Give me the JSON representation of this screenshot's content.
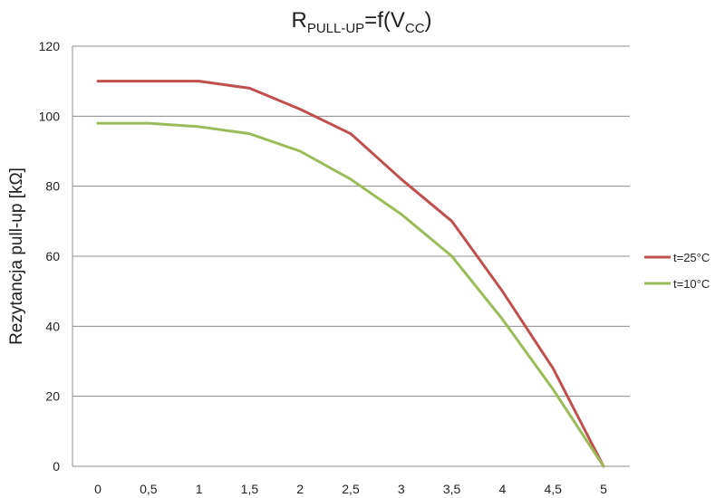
{
  "chart_data": {
    "type": "line",
    "title": {
      "main": "R",
      "main_sub": "PULL-UP",
      "mid": "=f(V",
      "mid_sub": "CC",
      "end": ")"
    },
    "xlabel": "",
    "ylabel": "Rezytancja pull-up [kΩ]",
    "categories": [
      "0",
      "0,5",
      "1",
      "1,5",
      "2",
      "2,5",
      "3",
      "3,5",
      "4",
      "4,5",
      "5"
    ],
    "ylim": [
      0,
      120
    ],
    "yticks": [
      "0",
      "20",
      "40",
      "60",
      "80",
      "100",
      "120"
    ],
    "grid": true,
    "legend_position": "right",
    "series": [
      {
        "name": "t=25°C",
        "color": "#c0504d",
        "values": [
          110,
          110,
          110,
          108,
          102,
          95,
          82,
          70,
          50,
          28,
          0
        ]
      },
      {
        "name": "t=10°C",
        "color": "#9bbb59",
        "values": [
          98,
          98,
          97,
          95,
          90,
          82,
          72,
          60,
          42,
          22,
          0
        ]
      }
    ]
  }
}
